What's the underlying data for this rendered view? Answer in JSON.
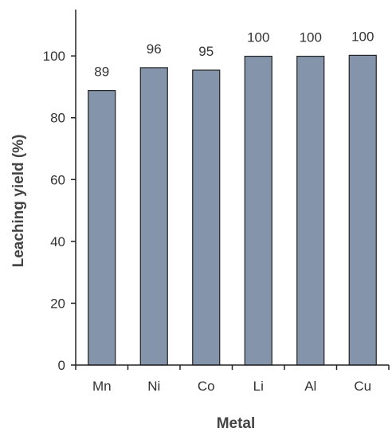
{
  "chart_data": {
    "type": "bar",
    "xlabel": "Metal",
    "ylabel": "Leaching yield (%)",
    "categories": [
      "Mn",
      "Ni",
      "Co",
      "Li",
      "Al",
      "Cu"
    ],
    "values": [
      88.8,
      96.2,
      95.4,
      99.9,
      99.9,
      100.2
    ],
    "data_labels": [
      "89",
      "96",
      "95",
      "100",
      "100",
      "100"
    ],
    "yticks": [
      "0",
      "20",
      "40",
      "60",
      "80",
      "100"
    ],
    "ylim": [
      0,
      115
    ],
    "grid": false,
    "legend": "none",
    "bar_color": "#8494ab",
    "bar_edge_color": "#222222"
  }
}
